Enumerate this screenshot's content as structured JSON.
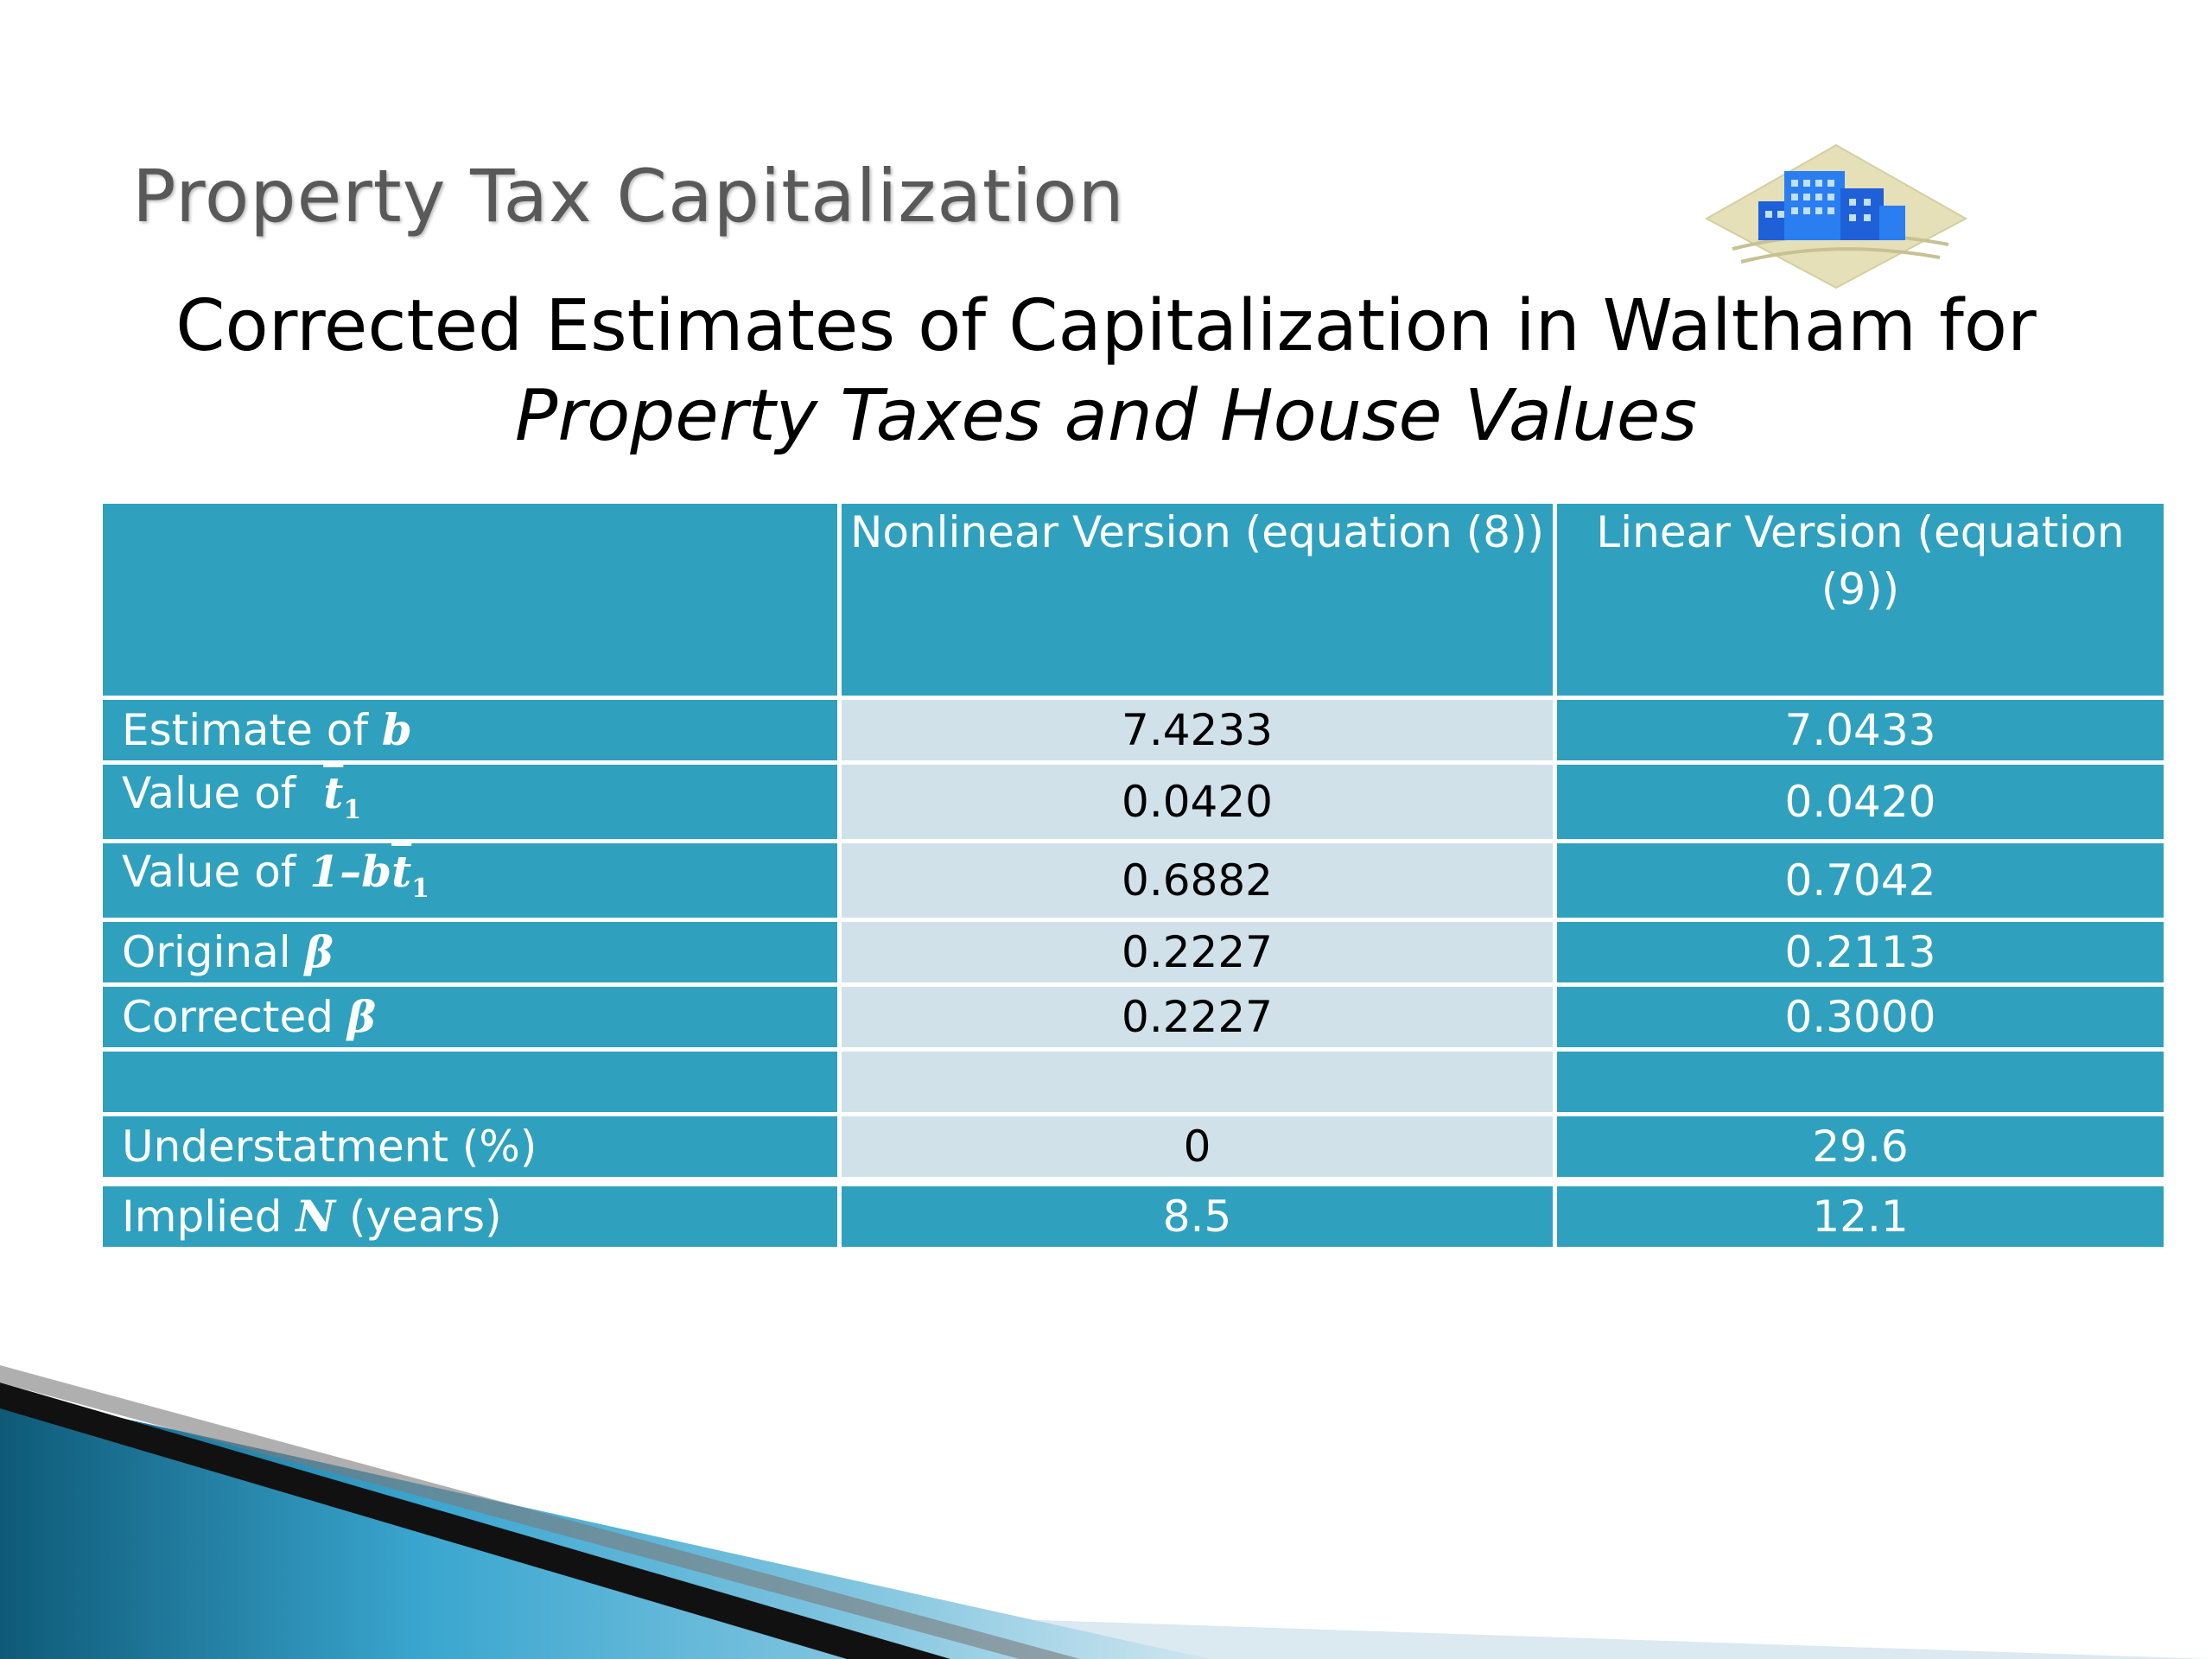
{
  "slide": {
    "title": "Property Tax Capitalization",
    "subtitle_line1": "Corrected Estimates of Capitalization in Waltham for",
    "subtitle_line2": "Property Taxes and House Values"
  },
  "table": {
    "headers": [
      "",
      "Nonlinear Version (equation (8))",
      "Linear Version (equation (9))"
    ],
    "rows": [
      {
        "label": "Estimate of ",
        "symbol": "b",
        "nonlinear": "7.4233",
        "linear": "7.0433"
      },
      {
        "label": "Value of ",
        "symbol": "t",
        "symbol_sub": "1",
        "nonlinear": "0.0420",
        "linear": "0.0420"
      },
      {
        "label": "Value of ",
        "symbol_prefix": "1–b",
        "symbol": "t",
        "symbol_sub": "1",
        "nonlinear": "0.6882",
        "linear": "0.7042"
      },
      {
        "label": "Original ",
        "symbol": "β",
        "nonlinear": "0.2227",
        "linear": "0.2113"
      },
      {
        "label": "Corrected ",
        "symbol": "β",
        "nonlinear": "0.2227",
        "linear": "0.3000"
      },
      {
        "label": "",
        "nonlinear": "",
        "linear": ""
      },
      {
        "label": "Understatment (%)",
        "nonlinear": "0",
        "linear": "29.6"
      },
      {
        "label": "Implied ",
        "symbol": "N",
        "label_suffix": " (years)",
        "nonlinear": "8.5",
        "linear": "12.1"
      }
    ]
  },
  "icons": {
    "logo": "buildings-logo-icon",
    "decoration": "blue-swoosh-decoration"
  },
  "colors": {
    "table_header": "#2fa1bf",
    "nonlinear_column": "#d0e1e9",
    "title_text": "#595959"
  }
}
